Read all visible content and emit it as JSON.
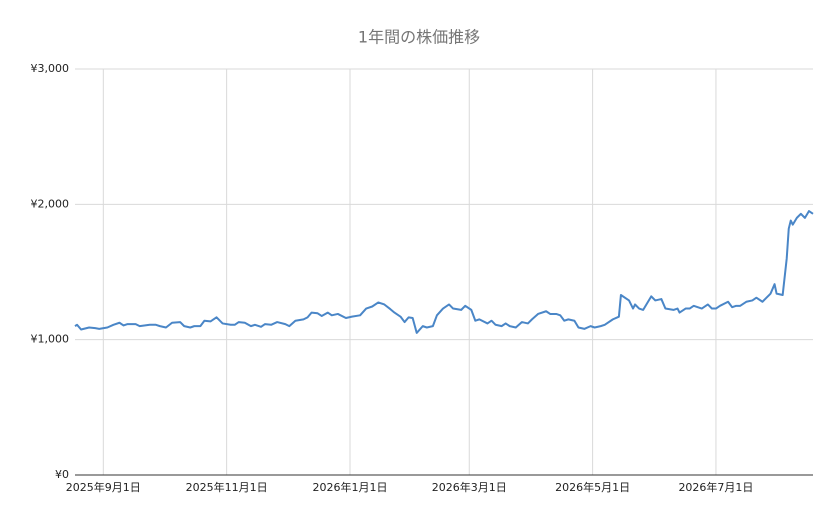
{
  "chart_data": {
    "type": "line",
    "title": "1年間の株価推移",
    "x": [
      "2025-08-18",
      "2025-08-19",
      "2025-08-21",
      "2025-08-25",
      "2025-08-28",
      "2025-08-30",
      "2025-09-03",
      "2025-09-06",
      "2025-09-09",
      "2025-09-11",
      "2025-09-13",
      "2025-09-17",
      "2025-09-19",
      "2025-09-24",
      "2025-09-27",
      "2025-09-29",
      "2025-10-02",
      "2025-10-05",
      "2025-10-09",
      "2025-10-11",
      "2025-10-14",
      "2025-10-16",
      "2025-10-19",
      "2025-10-21",
      "2025-10-24",
      "2025-10-27",
      "2025-10-30",
      "2025-11-03",
      "2025-11-05",
      "2025-11-07",
      "2025-11-10",
      "2025-11-13",
      "2025-11-15",
      "2025-11-18",
      "2025-11-20",
      "2025-11-23",
      "2025-11-26",
      "2025-11-30",
      "2025-12-02",
      "2025-12-05",
      "2025-12-09",
      "2025-12-11",
      "2025-12-13",
      "2025-12-16",
      "2025-12-18",
      "2025-12-21",
      "2025-12-23",
      "2025-12-26",
      "2025-12-30",
      "2026-01-02",
      "2026-01-06",
      "2026-01-09",
      "2026-01-12",
      "2026-01-15",
      "2026-01-18",
      "2026-01-21",
      "2026-01-23",
      "2026-01-26",
      "2026-01-28",
      "2026-01-30",
      "2026-02-01",
      "2026-02-03",
      "2026-02-06",
      "2026-02-08",
      "2026-02-11",
      "2026-02-13",
      "2026-02-16",
      "2026-02-19",
      "2026-02-21",
      "2026-02-25",
      "2026-02-27",
      "2026-03-02",
      "2026-03-04",
      "2026-03-06",
      "2026-03-10",
      "2026-03-12",
      "2026-03-14",
      "2026-03-17",
      "2026-03-19",
      "2026-03-21",
      "2026-03-24",
      "2026-03-27",
      "2026-03-30",
      "2026-04-01",
      "2026-04-04",
      "2026-04-08",
      "2026-04-10",
      "2026-04-13",
      "2026-04-15",
      "2026-04-17",
      "2026-04-19",
      "2026-04-22",
      "2026-04-24",
      "2026-04-27",
      "2026-04-30",
      "2026-05-02",
      "2026-05-05",
      "2026-05-07",
      "2026-05-11",
      "2026-05-14",
      "2026-05-15",
      "2026-05-19",
      "2026-05-21",
      "2026-05-22",
      "2026-05-24",
      "2026-05-26",
      "2026-05-30",
      "2026-06-01",
      "2026-06-04",
      "2026-06-06",
      "2026-06-10",
      "2026-06-12",
      "2026-06-13",
      "2026-06-16",
      "2026-06-18",
      "2026-06-20",
      "2026-06-22",
      "2026-06-24",
      "2026-06-27",
      "2026-06-29",
      "2026-07-01",
      "2026-07-03",
      "2026-07-07",
      "2026-07-09",
      "2026-07-11",
      "2026-07-13",
      "2026-07-16",
      "2026-07-19",
      "2026-07-21",
      "2026-07-24",
      "2026-07-26",
      "2026-07-28",
      "2026-07-30",
      "2026-07-31",
      "2026-08-03",
      "2026-08-05",
      "2026-08-06",
      "2026-08-07",
      "2026-08-08",
      "2026-08-10",
      "2026-08-12",
      "2026-08-14",
      "2026-08-16",
      "2026-08-18"
    ],
    "series": [
      {
        "color": "#4a86c7",
        "values": [
          1100,
          1110,
          1075,
          1090,
          1085,
          1080,
          1090,
          1110,
          1125,
          1105,
          1115,
          1115,
          1100,
          1110,
          1110,
          1100,
          1090,
          1125,
          1130,
          1100,
          1090,
          1100,
          1100,
          1140,
          1135,
          1165,
          1120,
          1110,
          1110,
          1130,
          1125,
          1100,
          1110,
          1095,
          1115,
          1110,
          1130,
          1115,
          1100,
          1140,
          1150,
          1165,
          1200,
          1195,
          1175,
          1200,
          1180,
          1190,
          1160,
          1170,
          1180,
          1230,
          1245,
          1275,
          1260,
          1225,
          1200,
          1170,
          1130,
          1165,
          1160,
          1050,
          1100,
          1090,
          1100,
          1180,
          1230,
          1260,
          1230,
          1220,
          1250,
          1220,
          1140,
          1150,
          1120,
          1140,
          1110,
          1100,
          1120,
          1100,
          1090,
          1130,
          1120,
          1150,
          1190,
          1210,
          1190,
          1190,
          1180,
          1140,
          1150,
          1140,
          1090,
          1080,
          1100,
          1090,
          1100,
          1110,
          1150,
          1170,
          1330,
          1290,
          1230,
          1260,
          1230,
          1220,
          1320,
          1290,
          1300,
          1230,
          1220,
          1230,
          1200,
          1230,
          1230,
          1250,
          1240,
          1230,
          1260,
          1230,
          1230,
          1250,
          1280,
          1240,
          1250,
          1250,
          1280,
          1290,
          1310,
          1280,
          1310,
          1340,
          1410,
          1340,
          1330,
          1600,
          1820,
          1880,
          1850,
          1900,
          1930,
          1900,
          1950,
          1930
        ]
      }
    ],
    "xlim": [
      "2025-08-18",
      "2026-08-18"
    ],
    "xticks": [
      {
        "value": "2025-09-01",
        "label": "2025年9月1日"
      },
      {
        "value": "2025-11-01",
        "label": "2025年11月1日"
      },
      {
        "value": "2026-01-01",
        "label": "2026年1月1日"
      },
      {
        "value": "2026-03-01",
        "label": "2026年3月1日"
      },
      {
        "value": "2026-05-01",
        "label": "2026年5月1日"
      },
      {
        "value": "2026-07-01",
        "label": "2026年7月1日"
      }
    ],
    "ylim": [
      0,
      3000
    ],
    "yticks": [
      {
        "value": 0,
        "label": "¥0"
      },
      {
        "value": 1000,
        "label": "¥1,000"
      },
      {
        "value": 2000,
        "label": "¥2,000"
      },
      {
        "value": 3000,
        "label": "¥3,000"
      }
    ],
    "grid": true
  }
}
